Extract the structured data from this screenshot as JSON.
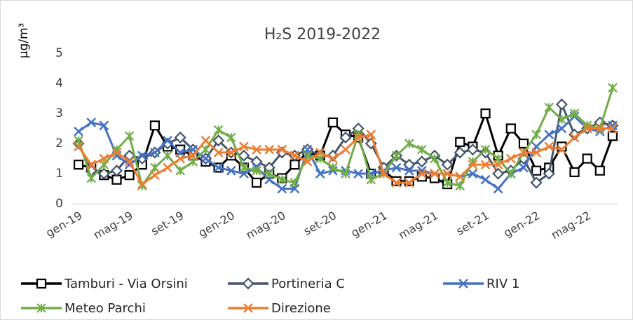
{
  "chart_data": {
    "type": "line",
    "title": "H₂S 2019-2022",
    "y_label": "µg/m³",
    "categories": [
      "gen-19",
      null,
      null,
      null,
      "mag-19",
      null,
      null,
      null,
      "set-19",
      null,
      null,
      null,
      "gen-20",
      null,
      null,
      null,
      "mag-20",
      null,
      null,
      null,
      "set-20",
      null,
      null,
      null,
      "gen-21",
      null,
      null,
      null,
      "mag-21",
      null,
      null,
      null,
      "set-21",
      null,
      null,
      null,
      "gen-22",
      null,
      null,
      null,
      "mag-22",
      null,
      null
    ],
    "series": [
      {
        "name": "Tamburi - Via Orsini",
        "color": "#000000",
        "marker": "square",
        "values": [
          1.3,
          1.2,
          0.95,
          0.8,
          0.95,
          1.3,
          2.6,
          1.9,
          1.8,
          1.6,
          1.4,
          1.2,
          1.6,
          1.2,
          0.7,
          1.0,
          0.85,
          1.3,
          1.7,
          1.6,
          2.7,
          2.3,
          2.2,
          1.0,
          1.1,
          0.75,
          0.75,
          0.9,
          0.85,
          0.65,
          2.05,
          1.9,
          3.0,
          1.6,
          2.5,
          2.0,
          1.1,
          1.2,
          1.9,
          1.05,
          1.5,
          1.1,
          2.25
        ]
      },
      {
        "name": "Portineria C",
        "color": "#44546a",
        "marker": "diamond",
        "values": [
          2.0,
          1.1,
          1.0,
          1.1,
          1.6,
          1.5,
          1.7,
          2.0,
          2.2,
          1.8,
          1.5,
          2.1,
          1.7,
          1.6,
          1.4,
          1.2,
          1.7,
          1.6,
          1.8,
          1.6,
          1.6,
          2.2,
          2.5,
          2.0,
          1.2,
          1.6,
          1.3,
          1.4,
          1.6,
          1.3,
          1.7,
          1.8,
          1.7,
          1.0,
          1.1,
          1.5,
          0.7,
          1.0,
          3.3,
          2.3,
          2.5,
          2.7,
          2.6
        ]
      },
      {
        "name": "RIV 1",
        "color": "#4472c4",
        "marker": "x",
        "values": [
          2.4,
          2.7,
          2.6,
          1.6,
          1.3,
          1.6,
          1.7,
          2.1,
          1.7,
          1.8,
          1.5,
          1.2,
          1.1,
          1.0,
          1.2,
          0.8,
          0.5,
          0.5,
          1.8,
          1.0,
          1.1,
          1.1,
          1.0,
          1.0,
          1.1,
          1.2,
          1.1,
          1.1,
          1.0,
          1.0,
          0.9,
          1.0,
          0.8,
          0.5,
          1.0,
          1.2,
          1.9,
          2.3,
          2.5,
          2.9,
          2.5,
          2.4,
          2.6
        ]
      },
      {
        "name": "Meteo Parchi",
        "color": "#70ad47",
        "marker": "star",
        "values": [
          2.1,
          0.85,
          1.3,
          1.8,
          2.25,
          0.6,
          1.2,
          1.6,
          1.1,
          1.4,
          1.8,
          2.45,
          2.2,
          1.2,
          1.1,
          1.0,
          0.8,
          0.7,
          1.6,
          1.5,
          1.2,
          1.0,
          2.3,
          0.8,
          1.0,
          1.6,
          2.0,
          1.8,
          1.5,
          0.7,
          0.6,
          1.4,
          1.8,
          1.5,
          1.0,
          1.7,
          2.3,
          3.2,
          2.8,
          3.0,
          2.6,
          2.5,
          3.85
        ]
      },
      {
        "name": "Direzione",
        "color": "#ed7d31",
        "marker": "x",
        "values": [
          1.9,
          1.3,
          1.5,
          1.7,
          1.4,
          0.65,
          0.95,
          1.2,
          1.5,
          1.6,
          2.1,
          1.7,
          1.7,
          1.9,
          1.8,
          1.8,
          1.8,
          1.6,
          1.4,
          1.7,
          1.5,
          1.8,
          2.2,
          2.3,
          1.0,
          0.7,
          0.7,
          1.0,
          1.0,
          1.0,
          0.9,
          1.3,
          1.3,
          1.3,
          1.5,
          1.7,
          1.7,
          1.9,
          1.8,
          2.2,
          2.5,
          2.5,
          2.5
        ]
      }
    ],
    "ylim": [
      0,
      5
    ],
    "yticks": [
      0,
      1,
      2,
      3,
      4,
      5
    ],
    "grid": false
  }
}
